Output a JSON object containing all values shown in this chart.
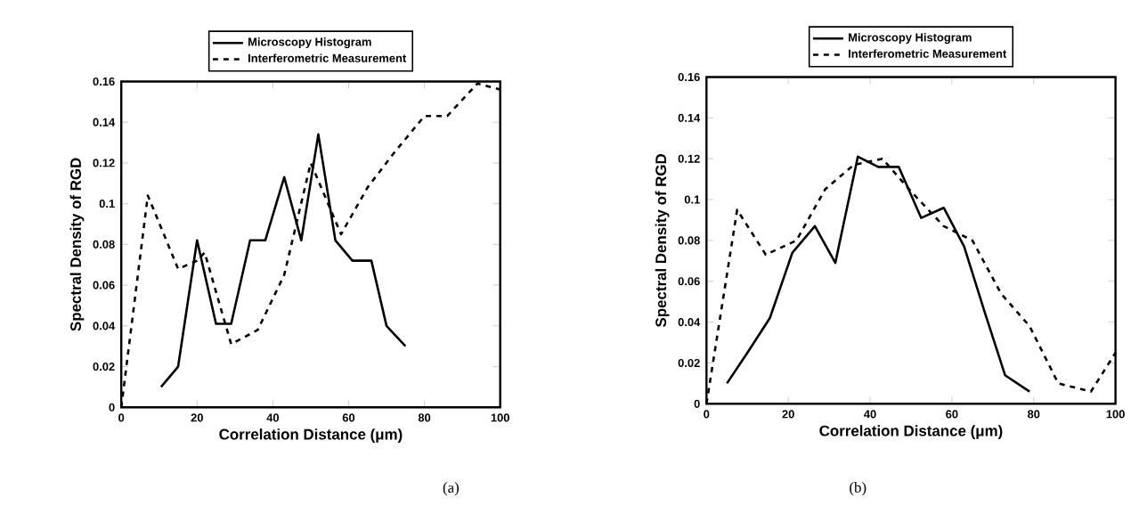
{
  "chart_data": [
    {
      "type": "line",
      "xlabel": "Correlation Distance (μm)",
      "ylabel": "Spectral Density of RGD",
      "xlim": [
        0,
        100
      ],
      "ylim": [
        0,
        0.16
      ],
      "xticks": [
        0,
        20,
        40,
        60,
        80,
        100
      ],
      "yticks": [
        0,
        0.02,
        0.04,
        0.06,
        0.08,
        0.1,
        0.12,
        0.14,
        0.16
      ],
      "legend": "top",
      "grid": false,
      "annotations": [
        "(a)"
      ],
      "series": [
        {
          "name": "Microscopy Histogram",
          "color": "#000000",
          "line_style": "solid",
          "x": [
            10.5,
            15,
            20,
            25,
            29,
            34,
            38,
            43,
            47.5,
            52,
            56.5,
            61,
            66,
            70,
            75
          ],
          "values": [
            0.01,
            0.02,
            0.082,
            0.041,
            0.041,
            0.082,
            0.082,
            0.113,
            0.082,
            0.134,
            0.082,
            0.072,
            0.072,
            0.04,
            0.03
          ]
        },
        {
          "name": "Interferometric Measurement",
          "color": "#000000",
          "line_style": "dashed",
          "x": [
            0,
            7,
            15,
            20,
            22,
            29,
            36,
            43,
            50,
            58,
            65,
            72,
            80,
            86,
            94,
            100
          ],
          "values": [
            0,
            0.104,
            0.068,
            0.072,
            0.076,
            0.031,
            0.038,
            0.065,
            0.12,
            0.085,
            0.108,
            0.125,
            0.143,
            0.143,
            0.159,
            0.156
          ]
        }
      ]
    },
    {
      "type": "line",
      "xlabel": "Correlation Distance (μm)",
      "ylabel": "Spectral Density of RGD",
      "xlim": [
        0,
        100
      ],
      "ylim": [
        0,
        0.16
      ],
      "xticks": [
        0,
        20,
        40,
        60,
        80,
        100
      ],
      "yticks": [
        0,
        0.02,
        0.04,
        0.06,
        0.08,
        0.1,
        0.12,
        0.14,
        0.16
      ],
      "legend": "top",
      "grid": false,
      "annotations": [
        "(b)"
      ],
      "series": [
        {
          "name": "Microscopy Histogram",
          "color": "#000000",
          "line_style": "solid",
          "x": [
            5,
            10,
            15.5,
            21,
            26.5,
            31.5,
            37,
            42,
            47,
            52.5,
            58,
            63,
            68,
            73,
            79
          ],
          "values": [
            0.01,
            0.025,
            0.042,
            0.074,
            0.087,
            0.069,
            0.121,
            0.116,
            0.116,
            0.091,
            0.096,
            0.077,
            0.045,
            0.014,
            0.006
          ]
        },
        {
          "name": "Interferometric Measurement",
          "color": "#000000",
          "line_style": "dashed",
          "x": [
            0,
            7.5,
            14.5,
            22,
            29,
            36,
            43,
            50,
            58,
            65,
            72,
            79,
            86,
            94,
            100
          ],
          "values": [
            0,
            0.095,
            0.073,
            0.08,
            0.105,
            0.117,
            0.12,
            0.104,
            0.087,
            0.08,
            0.054,
            0.038,
            0.01,
            0.006,
            0.025
          ]
        }
      ]
    }
  ]
}
